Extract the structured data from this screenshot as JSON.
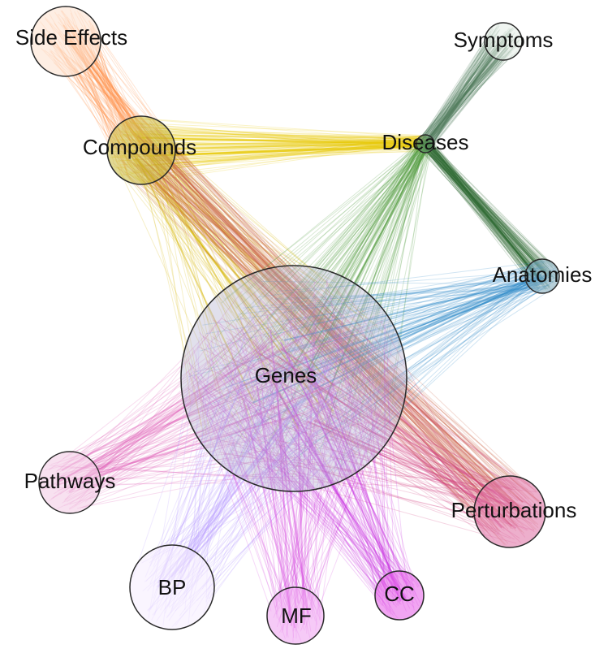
{
  "nodes": [
    {
      "id": "side_effects",
      "label": "Side Effects",
      "fill": "#fde0cc"
    },
    {
      "id": "symptoms",
      "label": "Symptoms",
      "fill": "#e3ece5"
    },
    {
      "id": "compounds",
      "label": "Compounds",
      "fill": "#c9b93a"
    },
    {
      "id": "diseases",
      "label": "Diseases",
      "fill": "#5f8f6b"
    },
    {
      "id": "anatomies",
      "label": "Anatomies",
      "fill": "#7aa6b8"
    },
    {
      "id": "genes",
      "label": "Genes",
      "fill": "#a8a6c9"
    },
    {
      "id": "pathways",
      "label": "Pathways",
      "fill": "#f2c9e4"
    },
    {
      "id": "perturbations",
      "label": "Perturbations",
      "fill": "#de6ea3"
    },
    {
      "id": "bp",
      "label": "BP",
      "fill": "#f5ecff"
    },
    {
      "id": "mf",
      "label": "MF",
      "fill": "#ef9ff0"
    },
    {
      "id": "cc",
      "label": "CC",
      "fill": "#e65be8"
    }
  ],
  "edges": [
    {
      "source": "side_effects",
      "target": "compounds",
      "color": "#ff8a3d"
    },
    {
      "source": "compounds",
      "target": "diseases",
      "color": "#e6c800"
    },
    {
      "source": "compounds",
      "target": "genes",
      "color": "#d4b400"
    },
    {
      "source": "compounds",
      "target": "perturbations",
      "color": "#c85a3c"
    },
    {
      "source": "symptoms",
      "target": "diseases",
      "color": "#4f7a5a"
    },
    {
      "source": "diseases",
      "target": "anatomies",
      "color": "#2e6b32"
    },
    {
      "source": "diseases",
      "target": "genes",
      "color": "#4f9a3c"
    },
    {
      "source": "anatomies",
      "target": "genes",
      "color": "#2d8ac8"
    },
    {
      "source": "genes",
      "target": "pathways",
      "color": "#e060b8"
    },
    {
      "source": "genes",
      "target": "perturbations",
      "color": "#d0407f"
    },
    {
      "source": "genes",
      "target": "bp",
      "color": "#b89cff"
    },
    {
      "source": "genes",
      "target": "mf",
      "color": "#d84fe0"
    },
    {
      "source": "genes",
      "target": "cc",
      "color": "#c830e0"
    }
  ]
}
